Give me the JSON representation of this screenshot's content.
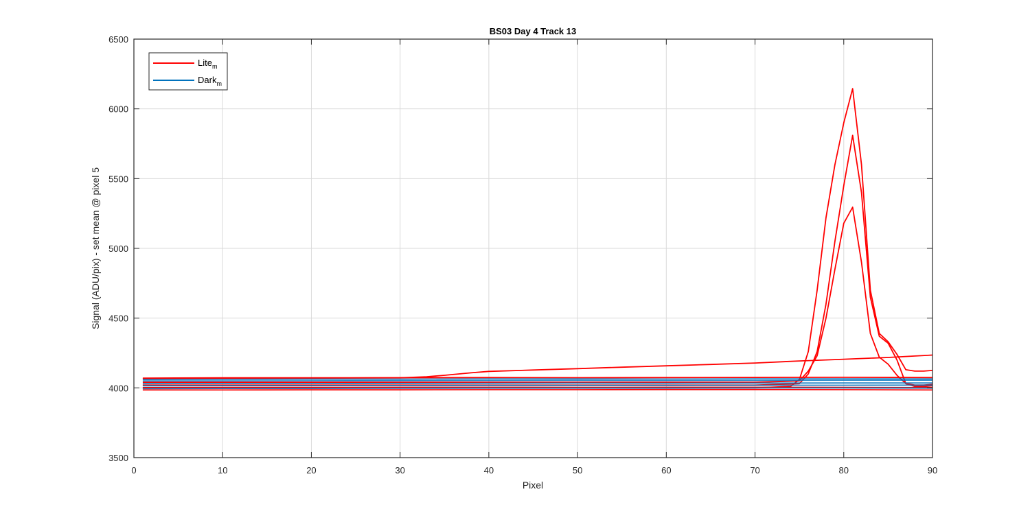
{
  "chart_data": {
    "type": "line",
    "title": "BS03 Day 4 Track 13",
    "xlabel": "Pixel",
    "ylabel": "Signal (ADU/pix) - set mean @ pixel 5",
    "xlim": [
      0,
      90
    ],
    "ylim": [
      3500,
      6500
    ],
    "x_ticks": [
      0,
      10,
      20,
      30,
      40,
      50,
      60,
      70,
      80,
      90
    ],
    "y_ticks": [
      3500,
      4000,
      4500,
      5000,
      5500,
      6000,
      6500
    ],
    "grid": true,
    "legend_position": "top-left",
    "legend": [
      {
        "label": "Lite",
        "subscript": "m",
        "color": "#ff0000"
      },
      {
        "label": "Dark",
        "subscript": "m",
        "color": "#0072bd"
      }
    ],
    "series": [
      {
        "group": "Lite",
        "color": "#ff0000",
        "x": [
          1,
          10,
          20,
          30,
          40,
          50,
          60,
          70,
          74,
          75,
          76,
          77,
          78,
          79,
          80,
          81,
          82,
          83,
          84,
          85,
          86,
          87,
          88,
          89,
          90
        ],
        "values": [
          4000,
          4000,
          4000,
          4000,
          4000,
          4000,
          4000,
          4000,
          4010,
          4060,
          4260,
          4700,
          5220,
          5600,
          5900,
          6145,
          5600,
          4700,
          4390,
          4330,
          4240,
          4130,
          4120,
          4120,
          4125
        ]
      },
      {
        "group": "Lite",
        "color": "#ff0000",
        "x": [
          1,
          10,
          20,
          30,
          40,
          50,
          60,
          70,
          75,
          76,
          77,
          78,
          79,
          80,
          81,
          82,
          83,
          84,
          85,
          86,
          87,
          88,
          89,
          90
        ],
        "values": [
          4020,
          4020,
          4020,
          4020,
          4020,
          4020,
          4020,
          4020,
          4030,
          4100,
          4260,
          4600,
          5050,
          5450,
          5810,
          5400,
          4650,
          4370,
          4320,
          4200,
          4030,
          4010,
          4010,
          4015
        ]
      },
      {
        "group": "Lite",
        "color": "#ff0000",
        "x": [
          1,
          10,
          20,
          30,
          40,
          50,
          60,
          70,
          75,
          76,
          77,
          78,
          79,
          80,
          81,
          82,
          83,
          84,
          85,
          86,
          87,
          88,
          89,
          90
        ],
        "values": [
          4040,
          4040,
          4040,
          4040,
          4040,
          4040,
          4040,
          4040,
          4050,
          4120,
          4230,
          4500,
          4850,
          5180,
          5295,
          4900,
          4390,
          4220,
          4170,
          4090,
          4030,
          4020,
          4020,
          4025
        ]
      },
      {
        "group": "Lite",
        "color": "#ff0000",
        "x": [
          1,
          10,
          20,
          30,
          33,
          35,
          38,
          40,
          45,
          50,
          55,
          60,
          65,
          70,
          75,
          80,
          85,
          90
        ],
        "values": [
          4065,
          4068,
          4070,
          4072,
          4080,
          4090,
          4108,
          4118,
          4128,
          4138,
          4148,
          4158,
          4168,
          4178,
          4193,
          4205,
          4218,
          4235
        ]
      },
      {
        "group": "Lite",
        "color": "#ff0000",
        "x": [
          1,
          10,
          20,
          30,
          40,
          50,
          60,
          70,
          80,
          90
        ],
        "values": [
          3985,
          3985,
          3986,
          3986,
          3987,
          3987,
          3988,
          3988,
          3987,
          3985
        ]
      },
      {
        "group": "Lite",
        "color": "#ff0000",
        "x": [
          1,
          10,
          20,
          30,
          40,
          50,
          60,
          70,
          80,
          90
        ],
        "values": [
          4070,
          4072,
          4072,
          4073,
          4074,
          4073,
          4074,
          4075,
          4076,
          4074
        ]
      },
      {
        "group": "Lite",
        "color": "#ff0000",
        "x": [
          1,
          10,
          20,
          30,
          40,
          50,
          60,
          70,
          80,
          90
        ],
        "values": [
          4002,
          4003,
          4003,
          4004,
          4004,
          4003,
          4004,
          4004,
          4003,
          4002
        ]
      },
      {
        "group": "Dark",
        "color": "#0072bd",
        "x": [
          1,
          10,
          20,
          30,
          40,
          50,
          60,
          70,
          80,
          90
        ],
        "values": [
          4030,
          4031,
          4031,
          4032,
          4033,
          4034,
          4033,
          4034,
          4035,
          4035
        ]
      },
      {
        "group": "Dark",
        "color": "#0072bd",
        "x": [
          1,
          10,
          20,
          30,
          40,
          50,
          60,
          70,
          80,
          90
        ],
        "values": [
          4050,
          4050,
          4051,
          4052,
          4053,
          4054,
          4053,
          4054,
          4055,
          4055
        ]
      },
      {
        "group": "Dark",
        "color": "#0072bd",
        "x": [
          1,
          10,
          20,
          30,
          40,
          50,
          60,
          70,
          80,
          90
        ],
        "values": [
          4015,
          4016,
          4016,
          4017,
          4018,
          4018,
          4018,
          4019,
          4019,
          4020
        ]
      },
      {
        "group": "Dark",
        "color": "#0072bd",
        "x": [
          1,
          10,
          20,
          30,
          40,
          50,
          60,
          70,
          80,
          90
        ],
        "values": [
          4060,
          4061,
          4062,
          4062,
          4064,
          4064,
          4063,
          4065,
          4065,
          4064
        ]
      },
      {
        "group": "Dark",
        "color": "#0072bd",
        "x": [
          1,
          10,
          20,
          30,
          40,
          50,
          60,
          70,
          80,
          90
        ],
        "values": [
          3995,
          3996,
          3996,
          3997,
          3998,
          3998,
          3998,
          3999,
          3999,
          3998
        ]
      }
    ]
  }
}
